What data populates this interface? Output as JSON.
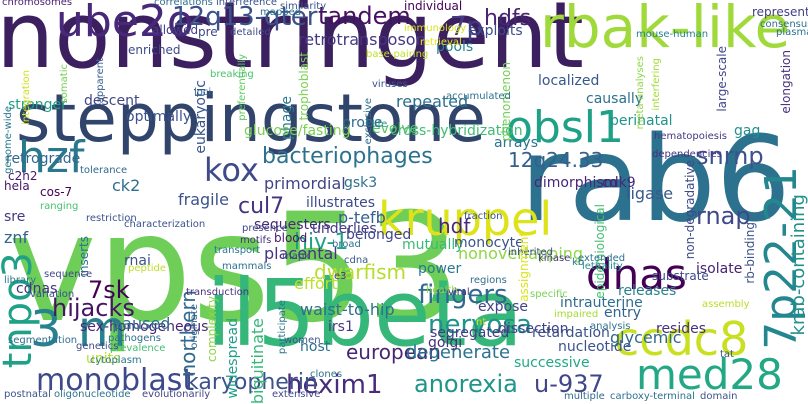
{
  "cloud": {
    "background": "#ffffff",
    "words": [
      {
        "text": "nonstringent",
        "color": "#3b1f5f"
      },
      {
        "text": "vps53",
        "color": "#6ece58"
      },
      {
        "text": "rab6",
        "color": "#2c728e"
      },
      {
        "text": "il5beta",
        "color": "#35b779"
      },
      {
        "text": "steppingstone",
        "color": "#31446b"
      },
      {
        "text": "rbak-like",
        "color": "#9fda3a"
      },
      {
        "text": "kruppel",
        "color": "#dde318"
      },
      {
        "text": "ube2o",
        "color": "#482878"
      },
      {
        "text": "3 m",
        "color": "#26828e"
      },
      {
        "text": "obsl1",
        "color": "#1fa187"
      },
      {
        "text": "hzf",
        "color": "#2a788e"
      },
      {
        "text": "kox",
        "color": "#3e4a89"
      },
      {
        "text": "dnas",
        "color": "#440154"
      },
      {
        "text": "ccdc8",
        "color": "#c8e020"
      },
      {
        "text": "med28",
        "color": "#22a884"
      },
      {
        "text": "monoblast",
        "color": "#3e4989"
      },
      {
        "text": "tnpo3",
        "color": "#1fa188"
      },
      {
        "text": "7p22-21",
        "color": "#24868e"
      },
      {
        "text": "fingers",
        "color": "#31688e"
      },
      {
        "text": "nervosa",
        "color": "#20928c"
      },
      {
        "text": "12q13-qter",
        "color": "#3b528b"
      },
      {
        "text": "tandem",
        "color": "#471063"
      },
      {
        "text": "snrnp",
        "color": "#3b528b"
      },
      {
        "text": "bacteriophages",
        "color": "#2c728e"
      },
      {
        "text": "cul7",
        "color": "#46327e"
      },
      {
        "text": "7p",
        "color": "#443983"
      },
      {
        "text": "hdfs",
        "color": "#482374"
      },
      {
        "text": "12q24.33",
        "color": "#355f8d"
      },
      {
        "text": "rnap",
        "color": "#3e4989"
      },
      {
        "text": "hdf",
        "color": "#482777"
      },
      {
        "text": "hexim1",
        "color": "#472c7a"
      },
      {
        "text": "anorexia",
        "color": "#1f958b"
      },
      {
        "text": "u-937",
        "color": "#404688"
      },
      {
        "text": "karyopherin",
        "color": "#3b528b"
      },
      {
        "text": "northern",
        "color": "#31688e"
      },
      {
        "text": "hiv-1",
        "color": "#1fa188"
      },
      {
        "text": "dwarfism",
        "color": "#b5de2b"
      },
      {
        "text": "krab-containing",
        "color": "#21918c"
      },
      {
        "text": "7sk",
        "color": "#440154"
      },
      {
        "text": "hijacks",
        "color": "#471365"
      },
      {
        "text": "retrotransposon",
        "color": "#453781"
      },
      {
        "text": "repeated",
        "color": "#2d708e"
      },
      {
        "text": "fragile",
        "color": "#3b528b"
      },
      {
        "text": "eukaryotic",
        "color": "#39568c"
      },
      {
        "text": "phage",
        "color": "#2a788e"
      },
      {
        "text": "primordial",
        "color": "#414487"
      },
      {
        "text": "european",
        "color": "#482475"
      },
      {
        "text": "nonoverlapping",
        "color": "#8fd744"
      },
      {
        "text": "intrauterine",
        "color": "#2e6e8e"
      },
      {
        "text": "mutually",
        "color": "#3aba76"
      },
      {
        "text": "waist-to-hip",
        "color": "#2e6f8e"
      },
      {
        "text": "placental",
        "color": "#463480"
      },
      {
        "text": "p-tefb",
        "color": "#355f8d"
      },
      {
        "text": "ubiquitinate",
        "color": "#35b779"
      },
      {
        "text": "widespread",
        "color": "#1f9e89"
      },
      {
        "text": "degenerate",
        "color": "#2c728e"
      },
      {
        "text": "successive",
        "color": "#22a884"
      },
      {
        "text": "nucleotide",
        "color": "#3b528b"
      },
      {
        "text": "glycemic",
        "color": "#31688e"
      },
      {
        "text": "retardation",
        "color": "#3b528b"
      },
      {
        "text": "segregated",
        "color": "#433e85"
      },
      {
        "text": "sex-homogeneous",
        "color": "#482677"
      },
      {
        "text": "paused",
        "color": "#2c728e"
      },
      {
        "text": "units",
        "color": "#b8de29"
      },
      {
        "text": "cdnas",
        "color": "#46337e"
      },
      {
        "text": "znf",
        "color": "#32658e"
      },
      {
        "text": "sre",
        "color": "#443983"
      },
      {
        "text": "hela",
        "color": "#481668"
      },
      {
        "text": "ck2",
        "color": "#2e6e8e"
      },
      {
        "text": "gsk3",
        "color": "#2c728e"
      },
      {
        "text": "cdk9",
        "color": "#482878"
      },
      {
        "text": "ligase",
        "color": "#38598c"
      },
      {
        "text": "dimorphism",
        "color": "#482576"
      },
      {
        "text": "cross-hybridization",
        "color": "#3fbc73"
      },
      {
        "text": "glucose/fasting",
        "color": "#7ad151"
      },
      {
        "text": "optimally",
        "color": "#3b528b"
      },
      {
        "text": "descent",
        "color": "#404688"
      },
      {
        "text": "stronger",
        "color": "#1fa188"
      },
      {
        "text": "retrograde",
        "color": "#31688e"
      },
      {
        "text": "evolve",
        "color": "#52c569"
      },
      {
        "text": "probe",
        "color": "#30698e"
      },
      {
        "text": "causally",
        "color": "#2d718e"
      },
      {
        "text": "perinatal",
        "color": "#20938c"
      },
      {
        "text": "localized",
        "color": "#39568c"
      },
      {
        "text": "arrays",
        "color": "#2a768e"
      },
      {
        "text": "illustrates",
        "color": "#3e4a89"
      },
      {
        "text": "sequesters",
        "color": "#482979"
      },
      {
        "text": "underlies",
        "color": "#433d84"
      },
      {
        "text": "belonged",
        "color": "#404588"
      },
      {
        "text": "effort",
        "color": "#bddf26"
      },
      {
        "text": "power",
        "color": "#2a788e"
      },
      {
        "text": "monocyte",
        "color": "#3b528b"
      },
      {
        "text": "releases",
        "color": "#27808e"
      },
      {
        "text": "entry",
        "color": "#33638d"
      },
      {
        "text": "expose",
        "color": "#414487"
      },
      {
        "text": "dissection",
        "color": "#414487"
      },
      {
        "text": "resides",
        "color": "#46327e"
      },
      {
        "text": "golgi",
        "color": "#46307e"
      },
      {
        "text": "host",
        "color": "#2e6f8e"
      },
      {
        "text": "irs1",
        "color": "#443a83"
      },
      {
        "text": "blood",
        "color": "#481769"
      },
      {
        "text": "inserts",
        "color": "#2c728e"
      },
      {
        "text": "rnai",
        "color": "#3b528b"
      },
      {
        "text": "isolate",
        "color": "#482273"
      },
      {
        "text": "epidemiological",
        "color": "#44bf70"
      },
      {
        "text": "gag",
        "color": "#21918c"
      },
      {
        "text": "pools",
        "color": "#26828e"
      },
      {
        "text": "exploits",
        "color": "#3e4c8a"
      },
      {
        "text": "individual",
        "color": "#440256"
      },
      {
        "text": "allowed",
        "color": "#424186"
      },
      {
        "text": "pre",
        "color": "#3e4989"
      },
      {
        "text": "represent",
        "color": "#433e85"
      },
      {
        "text": "chromosomes",
        "color": "#482273"
      },
      {
        "text": "correlations",
        "color": "#2e6e8e"
      },
      {
        "text": "interference",
        "color": "#3b518b"
      },
      {
        "text": "similarity",
        "color": "#39558c"
      },
      {
        "text": "mapped",
        "color": "#2c718e"
      },
      {
        "text": "detailed",
        "color": "#3e4989"
      },
      {
        "text": "consensus",
        "color": "#2e6e8e"
      },
      {
        "text": "plasma",
        "color": "#2c718e"
      },
      {
        "text": "mouse-human",
        "color": "#26828e"
      },
      {
        "text": "large-scale",
        "color": "#404688"
      },
      {
        "text": "elongation",
        "color": "#46327e"
      },
      {
        "text": "meta-analyses",
        "color": "#8fd744"
      },
      {
        "text": "interfering",
        "color": "#a5db36"
      },
      {
        "text": "phenomenon",
        "color": "#73d056"
      },
      {
        "text": "trophoblast",
        "color": "#7ad151"
      },
      {
        "text": "preferentially",
        "color": "#5ec962"
      },
      {
        "text": "breaking",
        "color": "#4ac16d"
      },
      {
        "text": "immunology",
        "color": "#d8e219"
      },
      {
        "text": "base-pairing",
        "color": "#c2df23"
      },
      {
        "text": "enriched",
        "color": "#3e4989"
      },
      {
        "text": "loci",
        "color": "#31688e"
      },
      {
        "text": "apparent",
        "color": "#365c8d"
      },
      {
        "text": "integration",
        "color": "#d0e11c"
      },
      {
        "text": "somatic",
        "color": "#73d056"
      },
      {
        "text": "viruses",
        "color": "#3b528b"
      },
      {
        "text": "exclusive",
        "color": "#2d708e"
      },
      {
        "text": "life",
        "color": "#21918c"
      },
      {
        "text": "accumulated",
        "color": "#2c728e"
      },
      {
        "text": "retrieval",
        "color": "#e7e419"
      },
      {
        "text": "hematopoiesis",
        "color": "#453781"
      },
      {
        "text": "dependencies",
        "color": "#46327e"
      },
      {
        "text": "non-degradative",
        "color": "#3e4989"
      },
      {
        "text": "rb-binding",
        "color": "#3b528b"
      },
      {
        "text": "genome-wide",
        "color": "#2a788e"
      },
      {
        "text": "tolerance",
        "color": "#30698e"
      },
      {
        "text": "c2h2",
        "color": "#481a6c"
      },
      {
        "text": "cos-7",
        "color": "#440154"
      },
      {
        "text": "restriction",
        "color": "#3b528b"
      },
      {
        "text": "presence",
        "color": "#414487"
      },
      {
        "text": "motifs",
        "color": "#46327e"
      },
      {
        "text": "ranging",
        "color": "#4ac16d"
      },
      {
        "text": "characterization",
        "color": "#3b528b"
      },
      {
        "text": "broad",
        "color": "#2c728e"
      },
      {
        "text": "library",
        "color": "#2a788e"
      },
      {
        "text": "peptide",
        "color": "#bddf26"
      },
      {
        "text": "transport",
        "color": "#2a788e"
      },
      {
        "text": "mapk",
        "color": "#404688"
      },
      {
        "text": "mammals",
        "color": "#2c728e"
      },
      {
        "text": "cdna",
        "color": "#38598c"
      },
      {
        "text": "sequence",
        "color": "#3e4989"
      },
      {
        "text": "pathogens",
        "color": "#2e6e8e"
      },
      {
        "text": "prevalence",
        "color": "#44bf70"
      },
      {
        "text": "transduction",
        "color": "#46337e"
      },
      {
        "text": "originate",
        "color": "#31688e"
      },
      {
        "text": "complexity",
        "color": "#8fd744"
      },
      {
        "text": "participate",
        "color": "#2a788e"
      },
      {
        "text": "women",
        "color": "#3b528b"
      },
      {
        "text": "clones",
        "color": "#2c728e"
      },
      {
        "text": "fraction",
        "color": "#39568c"
      },
      {
        "text": "e3",
        "color": "#46327e"
      },
      {
        "text": "inherited",
        "color": "#3e4989"
      },
      {
        "text": "lethality",
        "color": "#21918c"
      },
      {
        "text": "extended",
        "color": "#2c728e"
      },
      {
        "text": "assignment",
        "color": "#dde318"
      },
      {
        "text": "kinase",
        "color": "#46327e"
      },
      {
        "text": "regions",
        "color": "#2e6e8e"
      },
      {
        "text": "health",
        "color": "#8fd744"
      },
      {
        "text": "specific",
        "color": "#7ad151"
      },
      {
        "text": "substrate",
        "color": "#3e4989"
      },
      {
        "text": "assembly",
        "color": "#b8de29"
      },
      {
        "text": "impaired",
        "color": "#a5db36"
      },
      {
        "text": "analysis",
        "color": "#2c728e"
      },
      {
        "text": "tat",
        "color": "#3b528b"
      },
      {
        "text": "segmentation",
        "color": "#2e6e8e"
      },
      {
        "text": "genetics",
        "color": "#3e4989"
      },
      {
        "text": "cytoplasm",
        "color": "#2a788e"
      },
      {
        "text": "postnatal",
        "color": "#3b528b"
      },
      {
        "text": "oligonucleotide",
        "color": "#2c728e"
      },
      {
        "text": "evolutionarily",
        "color": "#414487"
      },
      {
        "text": "multiple",
        "color": "#31688e"
      },
      {
        "text": "carboxy-terminal",
        "color": "#2c728e"
      },
      {
        "text": "domain",
        "color": "#3b528b"
      },
      {
        "text": "extensive",
        "color": "#3e4989"
      },
      {
        "text": "viral",
        "color": "#46327e"
      },
      {
        "text": "kb",
        "color": "#2a788e"
      },
      {
        "text": "nt",
        "color": "#d8e219"
      },
      {
        "text": "variation",
        "color": "#3b528b"
      }
    ]
  }
}
